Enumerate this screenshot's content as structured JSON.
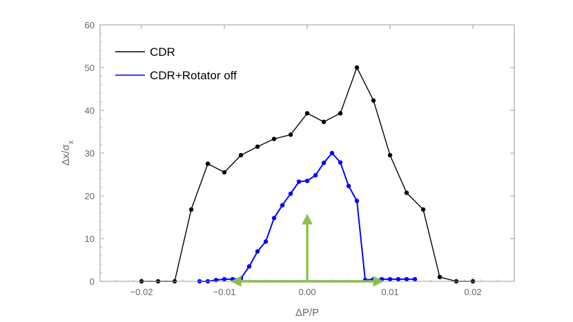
{
  "chart_data": {
    "type": "line",
    "title": "",
    "xlabel": "ΔP/P",
    "ylabel": "Δx/σ",
    "ylabel_sub": "x",
    "xlim": [
      -0.025,
      0.025
    ],
    "ylim": [
      0,
      60
    ],
    "x_ticks": [
      -0.02,
      -0.01,
      0.0,
      0.01,
      0.02
    ],
    "x_tick_labels": [
      "−0.02",
      "−0.01",
      "0.00",
      "0.01",
      "0.02"
    ],
    "y_ticks": [
      0,
      10,
      20,
      30,
      40,
      50,
      60
    ],
    "y_tick_labels": [
      "0",
      "10",
      "20",
      "30",
      "40",
      "50",
      "60"
    ],
    "grid": false,
    "legend_position": "top-left",
    "series": [
      {
        "name": "CDR",
        "color": "#000000",
        "x": [
          -0.02,
          -0.018,
          -0.016,
          -0.014,
          -0.012,
          -0.01,
          -0.008,
          -0.006,
          -0.004,
          -0.002,
          0.0,
          0.002,
          0.004,
          0.006,
          0.008,
          0.01,
          0.012,
          0.014,
          0.016,
          0.018,
          0.02
        ],
        "y": [
          0,
          0,
          0,
          16.8,
          27.5,
          25.5,
          29.5,
          31.5,
          33.3,
          34.3,
          39.3,
          37.3,
          39.3,
          50.0,
          42.3,
          29.5,
          20.7,
          16.8,
          1.0,
          0,
          0
        ]
      },
      {
        "name": "CDR+Rotator off",
        "color": "#0000ff",
        "x": [
          -0.013,
          -0.012,
          -0.011,
          -0.01,
          -0.009,
          -0.008,
          -0.007,
          -0.006,
          -0.005,
          -0.004,
          -0.003,
          -0.002,
          -0.001,
          0.0,
          0.001,
          0.002,
          0.003,
          0.004,
          0.005,
          0.006,
          0.007,
          0.008,
          0.009,
          0.01,
          0.011,
          0.012,
          0.013
        ],
        "y": [
          0,
          0,
          0.3,
          0.5,
          0.5,
          0.7,
          3.5,
          7.0,
          9.3,
          14.8,
          17.8,
          20.5,
          23.3,
          23.5,
          24.8,
          27.7,
          30.0,
          27.8,
          22.3,
          18.8,
          0.3,
          0.5,
          0.5,
          0.5,
          0.5,
          0.5,
          0.5
        ]
      }
    ],
    "annotations": {
      "arrow_color": "#8bc34a",
      "vertical_arrow": {
        "x": 0.0,
        "y_from": 0,
        "y_to": 15
      },
      "horizontal_arrow": {
        "x_from": -0.009,
        "x_to": 0.009,
        "y": 0
      }
    }
  }
}
